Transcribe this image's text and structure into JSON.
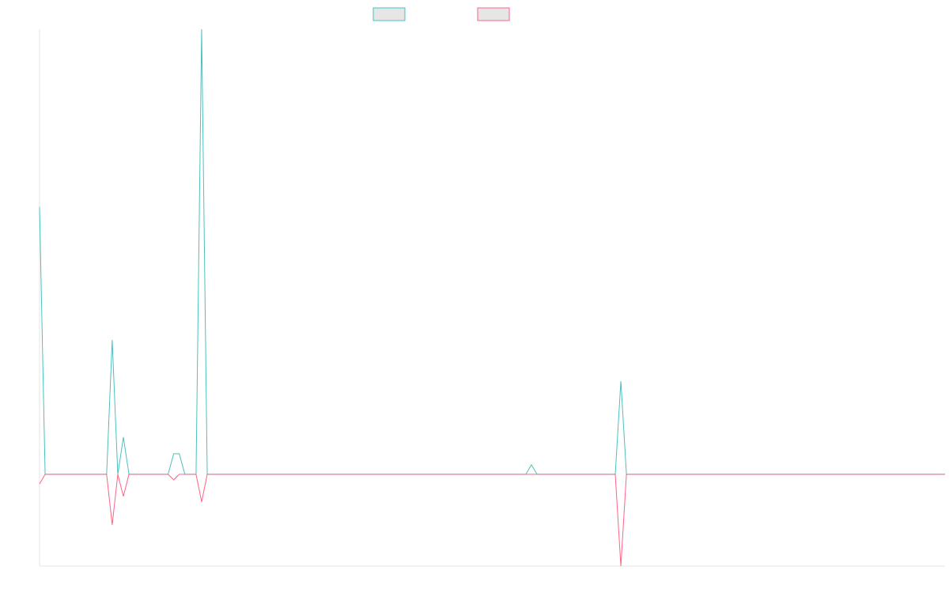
{
  "chart_data": {
    "type": "line",
    "ylim": [
      -20,
      97
    ],
    "series": [
      {
        "color": "#4bc0c0",
        "values": [
          58.3,
          0,
          0,
          0,
          0,
          0,
          0,
          0,
          0,
          0,
          0,
          0,
          0,
          29.3,
          0,
          8.1,
          0,
          0,
          0,
          0,
          0,
          0,
          0,
          0,
          4.5,
          4.5,
          0,
          0,
          0,
          97,
          0,
          0,
          0,
          0,
          0,
          0,
          0,
          0,
          0,
          0,
          0,
          0,
          0,
          0,
          0,
          0,
          0,
          0,
          0,
          0,
          0,
          0,
          0,
          0,
          0,
          0,
          0,
          0,
          0,
          0,
          0,
          0,
          0,
          0,
          0,
          0,
          0,
          0,
          0,
          0,
          0,
          0,
          0,
          0,
          0,
          0,
          0,
          0,
          0,
          0,
          0,
          0,
          0,
          0,
          0,
          0,
          0,
          0,
          2.1,
          0,
          0,
          0,
          0,
          0,
          0,
          0,
          0,
          0,
          0,
          0,
          0,
          0,
          0,
          0,
          20.3,
          0,
          0,
          0,
          0,
          0,
          0,
          0,
          0,
          0,
          0,
          0,
          0,
          0,
          0,
          0,
          0,
          0,
          0,
          0,
          0,
          0,
          0,
          0,
          0,
          0,
          0,
          0,
          0,
          0,
          0,
          0,
          0,
          0,
          0,
          0,
          0,
          0,
          0,
          0,
          0,
          0,
          0,
          0,
          0,
          0,
          0,
          0,
          0,
          0,
          0,
          0,
          0,
          0,
          0,
          0,
          0,
          0,
          0
        ]
      },
      {
        "color": "#ff6384",
        "values": [
          -2.1,
          0,
          0,
          0,
          0,
          0,
          0,
          0,
          0,
          0,
          0,
          0,
          0,
          -11,
          0,
          -4.8,
          0,
          0,
          0,
          0,
          0,
          0,
          0,
          0,
          -1.2,
          0,
          0,
          0,
          0,
          -6,
          0,
          0,
          0,
          0,
          0,
          0,
          0,
          0,
          0,
          0,
          0,
          0,
          0,
          0,
          0,
          0,
          0,
          0,
          0,
          0,
          0,
          0,
          0,
          0,
          0,
          0,
          0,
          0,
          0,
          0,
          0,
          0,
          0,
          0,
          0,
          0,
          0,
          0,
          0,
          0,
          0,
          0,
          0,
          0,
          0,
          0,
          0,
          0,
          0,
          0,
          0,
          0,
          0,
          0,
          0,
          0,
          0,
          0,
          0,
          0,
          0,
          0,
          0,
          0,
          0,
          0,
          0,
          0,
          0,
          0,
          0,
          0,
          0,
          0,
          -20,
          0,
          0,
          0,
          0,
          0,
          0,
          0,
          0,
          0,
          0,
          0,
          0,
          0,
          0,
          0,
          0,
          0,
          0,
          0,
          0,
          0,
          0,
          0,
          0,
          0,
          0,
          0,
          0,
          0,
          0,
          0,
          0,
          0,
          0,
          0,
          0,
          0,
          0,
          0,
          0,
          0,
          0,
          0,
          0,
          0,
          0,
          0,
          0,
          0,
          0,
          0,
          0,
          0,
          0,
          0,
          0,
          0,
          0
        ]
      }
    ]
  }
}
